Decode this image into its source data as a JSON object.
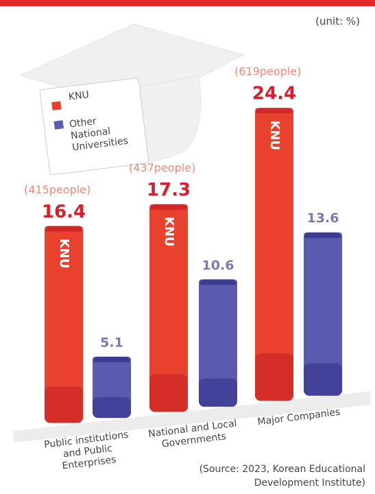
{
  "chart_data": {
    "type": "bar",
    "unit": "(unit: %)",
    "categories": [
      "Public institutions and Public Enterprises",
      "National and Local Governments",
      "Major Companies"
    ],
    "series": [
      {
        "name": "KNU",
        "color": "#e8412e",
        "values": [
          16.4,
          17.3,
          24.4
        ]
      },
      {
        "name": "Other National Universities",
        "color": "#5a5aae",
        "values": [
          5.1,
          10.6,
          13.6
        ]
      }
    ],
    "annotations": [
      "(415people)",
      "(437people)",
      "(619people)"
    ],
    "source": "(Source: 2023, Korean Educational Development Institute)"
  }
}
